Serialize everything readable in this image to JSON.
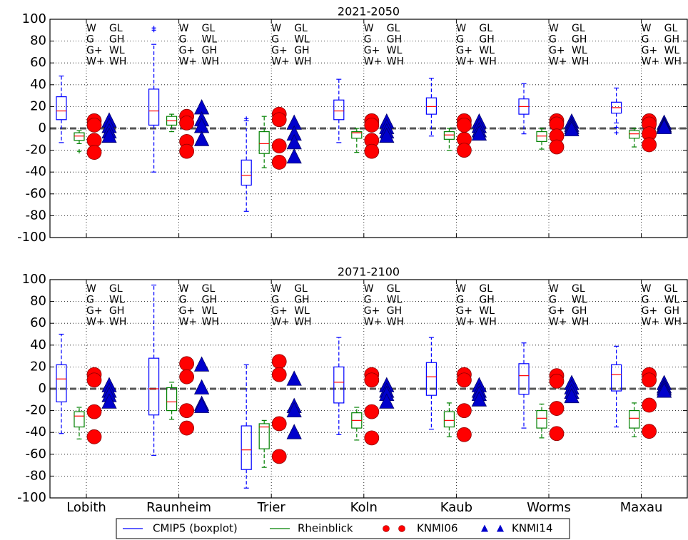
{
  "chart_data": [
    {
      "type": "box",
      "title": "2021-2050",
      "ylim": [
        -100,
        100
      ],
      "yticks": [
        -100,
        -80,
        -60,
        -40,
        -20,
        0,
        20,
        40,
        60,
        80,
        100
      ],
      "grid": true,
      "reference_line": 0,
      "scenarios": [
        [
          [
            "W",
            "G",
            "G+",
            "W+"
          ],
          [
            "GL",
            "GH",
            "WL",
            "WH"
          ]
        ],
        [
          [
            "W",
            "G",
            "G+",
            "W+"
          ],
          [
            "GL",
            "WL",
            "GH",
            "WH"
          ]
        ],
        [
          [
            "W",
            "G",
            "G+",
            "W+"
          ],
          [
            "GL",
            "WL",
            "GH",
            "WH"
          ]
        ],
        [
          [
            "W",
            "G",
            "G+",
            "W+"
          ],
          [
            "GL",
            "GH",
            "WL",
            "WH"
          ]
        ],
        [
          [
            "W",
            "G",
            "G+",
            "W+"
          ],
          [
            "GL",
            "GH",
            "WL",
            "WH"
          ]
        ],
        [
          [
            "W",
            "G",
            "G+",
            "W+"
          ],
          [
            "GL",
            "GH",
            "WL",
            "WH"
          ]
        ],
        [
          [
            "W",
            "G",
            "G+",
            "W+"
          ],
          [
            "GL",
            "GH",
            "WL",
            "WH"
          ]
        ]
      ],
      "series": [
        {
          "name": "CMIP5 (boxplot)",
          "color": "#0000ff",
          "marker": "box",
          "boxes": [
            {
              "whislo": -13,
              "q1": 8,
              "med": 16,
              "q3": 29,
              "whishi": 48
            },
            {
              "whislo": -40,
              "q1": 3,
              "med": 16,
              "q3": 36,
              "whishi": 77,
              "fliers": [
                90,
                92
              ]
            },
            {
              "whislo": -76,
              "q1": -52,
              "med": -43,
              "q3": -29,
              "whishi": 7,
              "fliers": [
                9
              ]
            },
            {
              "whislo": -13,
              "q1": 8,
              "med": 16,
              "q3": 26,
              "whishi": 45
            },
            {
              "whislo": -7,
              "q1": 13,
              "med": 20,
              "q3": 28,
              "whishi": 46
            },
            {
              "whislo": -5,
              "q1": 13,
              "med": 20,
              "q3": 27,
              "whishi": 41
            },
            {
              "whislo": 5,
              "q1": 14,
              "med": 19,
              "q3": 24,
              "whishi": 37,
              "fliers": [
                1,
                -4
              ]
            }
          ]
        },
        {
          "name": "Rheinblick",
          "color": "#008000",
          "marker": "box",
          "boxes": [
            {
              "whislo": -14,
              "q1": -11,
              "med": -7,
              "q3": -4,
              "whishi": -2,
              "fliers": [
                -21
              ]
            },
            {
              "whislo": -3,
              "q1": 3,
              "med": 7,
              "q3": 11,
              "whishi": 13
            },
            {
              "whislo": -36,
              "q1": -23,
              "med": -14,
              "q3": -3,
              "whishi": 11
            },
            {
              "whislo": -22,
              "q1": -9,
              "med": -4,
              "q3": -3,
              "whishi": 0
            },
            {
              "whislo": -20,
              "q1": -10,
              "med": -6,
              "q3": -3,
              "whishi": 0
            },
            {
              "whislo": -19,
              "q1": -12,
              "med": -7,
              "q3": -3,
              "whishi": 0
            },
            {
              "whislo": -17,
              "q1": -9,
              "med": -5,
              "q3": -2,
              "whishi": 0
            }
          ]
        },
        {
          "name": "KNMI06",
          "color": "#ff0000",
          "marker": "circle",
          "values": [
            [
              7,
              3,
              -11,
              -22
            ],
            [
              11,
              5,
              -12,
              -21
            ],
            [
              13,
              8,
              -16,
              -31
            ],
            [
              7,
              3,
              -11,
              -21
            ],
            [
              7,
              3,
              -10,
              -20
            ],
            [
              7,
              4,
              -7,
              -17
            ],
            [
              7,
              4,
              -5,
              -15
            ]
          ]
        },
        {
          "name": "KNMI14",
          "color": "#0000cc",
          "marker": "triangle",
          "values": [
            [
              7,
              2,
              -3,
              -7
            ],
            [
              19,
              8,
              2,
              -10
            ],
            [
              5,
              -5,
              -13,
              -26
            ],
            [
              6,
              1,
              -3,
              -7
            ],
            [
              6,
              2,
              -2,
              -5
            ],
            [
              6,
              3,
              1,
              -1
            ],
            [
              5,
              3,
              2,
              1
            ]
          ]
        }
      ]
    },
    {
      "type": "box",
      "title": "2071-2100",
      "categories": [
        "Lobith",
        "Raunheim",
        "Trier",
        "Koln",
        "Kaub",
        "Worms",
        "Maxau"
      ],
      "ylim": [
        -100,
        100
      ],
      "yticks": [
        -100,
        -80,
        -60,
        -40,
        -20,
        0,
        20,
        40,
        60,
        80,
        100
      ],
      "grid": true,
      "reference_line": 0,
      "scenarios": [
        [
          [
            "W",
            "G",
            "G+",
            "W+"
          ],
          [
            "GL",
            "WL",
            "GH",
            "WH"
          ]
        ],
        [
          [
            "W",
            "G",
            "G+",
            "W+"
          ],
          [
            "GL",
            "GH",
            "WL",
            "WH"
          ]
        ],
        [
          [
            "W",
            "G",
            "G+",
            "W+"
          ],
          [
            "GL",
            "GH",
            "WL",
            "WH"
          ]
        ],
        [
          [
            "W",
            "G",
            "G+",
            "W+"
          ],
          [
            "GL",
            "WL",
            "GH",
            "WH"
          ]
        ],
        [
          [
            "W",
            "G",
            "G+",
            "W+"
          ],
          [
            "GL",
            "GH",
            "WL",
            "WH"
          ]
        ],
        [
          [
            "W",
            "G",
            "G+",
            "W+"
          ],
          [
            "GL",
            "WL",
            "GH",
            "WH"
          ]
        ],
        [
          [
            "W",
            "G",
            "G+",
            "W+"
          ],
          [
            "GL",
            "WL",
            "GH",
            "WH"
          ]
        ]
      ],
      "series": [
        {
          "color": "#0000ff",
          "marker": "box",
          "boxes": [
            {
              "whislo": -41,
              "q1": -12,
              "med": 9,
              "q3": 22,
              "whishi": 50
            },
            {
              "whislo": -61,
              "q1": -24,
              "med": 0,
              "q3": 28,
              "whishi": 95
            },
            {
              "whislo": -91,
              "q1": -74,
              "med": -56,
              "q3": -34,
              "whishi": 22
            },
            {
              "whislo": -42,
              "q1": -13,
              "med": 6,
              "q3": 20,
              "whishi": 47
            },
            {
              "whislo": -37,
              "q1": -6,
              "med": 11,
              "q3": 24,
              "whishi": 47
            },
            {
              "whislo": -36,
              "q1": -5,
              "med": 12,
              "q3": 23,
              "whishi": 42
            },
            {
              "whislo": -35,
              "q1": -2,
              "med": 13,
              "q3": 22,
              "whishi": 39
            }
          ]
        },
        {
          "color": "#008000",
          "marker": "box",
          "boxes": [
            {
              "whislo": -46,
              "q1": -35,
              "med": -25,
              "q3": -21,
              "whishi": -17
            },
            {
              "whislo": -28,
              "q1": -20,
              "med": -12,
              "q3": 1,
              "whishi": 6
            },
            {
              "whislo": -72,
              "q1": -55,
              "med": -35,
              "q3": -32,
              "whishi": -29
            },
            {
              "whislo": -47,
              "q1": -36,
              "med": -29,
              "q3": -22,
              "whishi": -17
            },
            {
              "whislo": -44,
              "q1": -35,
              "med": -29,
              "q3": -21,
              "whishi": -13
            },
            {
              "whislo": -45,
              "q1": -36,
              "med": -27,
              "q3": -20,
              "whishi": -14
            },
            {
              "whislo": -44,
              "q1": -36,
              "med": -27,
              "q3": -20,
              "whishi": -13
            }
          ]
        },
        {
          "color": "#ff0000",
          "marker": "circle",
          "values": [
            [
              13,
              8,
              -21,
              -44
            ],
            [
              23,
              11,
              -20,
              -36
            ],
            [
              25,
              13,
              -32,
              -62
            ],
            [
              13,
              8,
              -21,
              -45
            ],
            [
              13,
              8,
              -20,
              -42
            ],
            [
              12,
              7,
              -18,
              -41
            ],
            [
              13,
              8,
              -15,
              -39
            ]
          ]
        },
        {
          "color": "#0000cc",
          "marker": "triangle",
          "values": [
            [
              3,
              -2,
              -6,
              -12
            ],
            [
              22,
              1,
              -14,
              -16
            ],
            [
              9,
              -16,
              -20,
              -40
            ],
            [
              3,
              -2,
              -5,
              -12
            ],
            [
              3,
              -2,
              -5,
              -10
            ],
            [
              5,
              1,
              -3,
              -7
            ],
            [
              5,
              2,
              0,
              -2
            ]
          ]
        }
      ]
    }
  ]
}
